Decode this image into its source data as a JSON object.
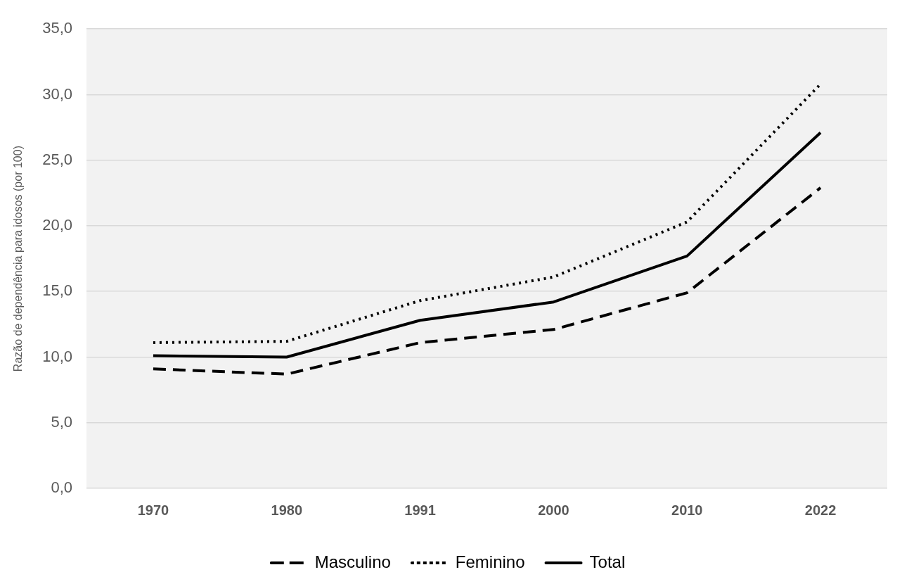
{
  "chart_data": {
    "type": "line",
    "ylabel": "Razão de dependência para idosos (por 100)",
    "categories": [
      "1970",
      "1980",
      "1991",
      "2000",
      "2010",
      "2022"
    ],
    "series": [
      {
        "name": "Masculino",
        "color": "#000000",
        "line_style": "dashed",
        "values": [
          9.1,
          8.7,
          11.1,
          12.1,
          14.9,
          22.9
        ]
      },
      {
        "name": "Feminino",
        "color": "#000000",
        "line_style": "dotted",
        "values": [
          11.1,
          11.2,
          14.3,
          16.1,
          20.3,
          30.8
        ]
      },
      {
        "name": "Total",
        "color": "#000000",
        "line_style": "solid",
        "values": [
          10.1,
          10.0,
          12.8,
          14.2,
          17.7,
          27.1
        ]
      }
    ],
    "ylim": [
      0,
      35
    ],
    "yticks": [
      {
        "value": 0,
        "label": "0,0"
      },
      {
        "value": 5,
        "label": "5,0"
      },
      {
        "value": 10,
        "label": "10,0"
      },
      {
        "value": 15,
        "label": "15,0"
      },
      {
        "value": 20,
        "label": "20,0"
      },
      {
        "value": 25,
        "label": "25,0"
      },
      {
        "value": 30,
        "label": "30,0"
      },
      {
        "value": 35,
        "label": "35,0"
      }
    ],
    "grid": "y",
    "legend": "bottom",
    "marker": "none"
  }
}
